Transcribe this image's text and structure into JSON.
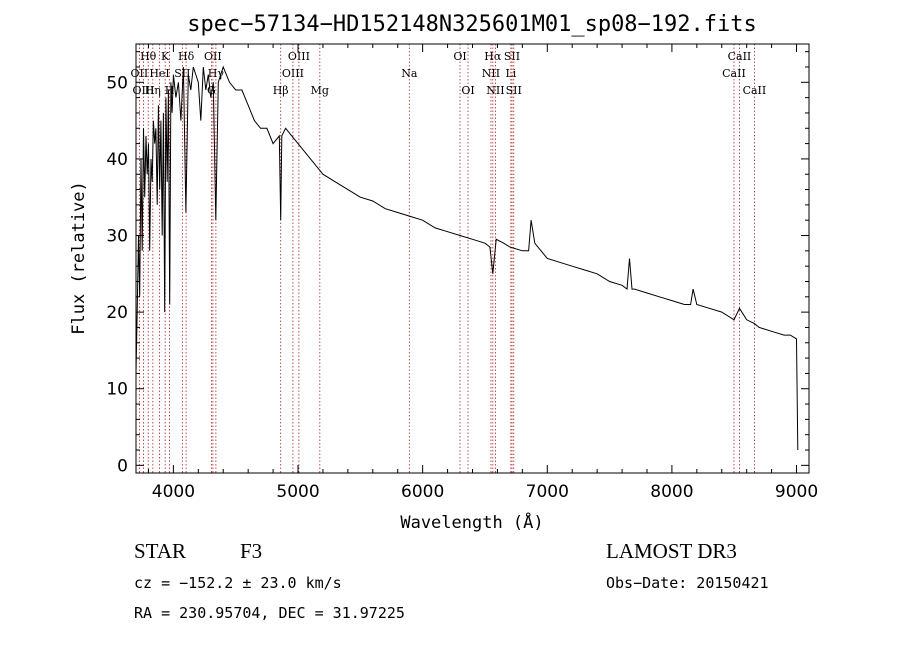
{
  "chart_data": {
    "type": "line",
    "title": "spec−57134−HD152148N325601M01_sp08−192.fits",
    "xlabel": "Wavelength (Å)",
    "ylabel": "Flux (relative)",
    "xlim": [
      3700,
      9100
    ],
    "ylim": [
      -1,
      55
    ],
    "xticks": [
      4000,
      5000,
      6000,
      7000,
      8000,
      9000
    ],
    "yticks": [
      0,
      10,
      20,
      30,
      40,
      50
    ],
    "series": [
      {
        "name": "spectrum",
        "x": [
          3700,
          3710,
          3720,
          3730,
          3740,
          3750,
          3760,
          3770,
          3780,
          3790,
          3800,
          3810,
          3820,
          3830,
          3840,
          3850,
          3860,
          3870,
          3880,
          3890,
          3900,
          3910,
          3920,
          3930,
          3940,
          3950,
          3960,
          3970,
          3980,
          3990,
          4000,
          4020,
          4040,
          4060,
          4080,
          4100,
          4120,
          4140,
          4160,
          4180,
          4200,
          4220,
          4240,
          4260,
          4280,
          4300,
          4320,
          4340,
          4360,
          4380,
          4400,
          4450,
          4500,
          4550,
          4600,
          4650,
          4700,
          4750,
          4800,
          4850,
          4861,
          4870,
          4900,
          4950,
          5000,
          5050,
          5100,
          5150,
          5200,
          5300,
          5400,
          5500,
          5600,
          5700,
          5800,
          5900,
          6000,
          6100,
          6200,
          6300,
          6400,
          6500,
          6540,
          6563,
          6590,
          6650,
          6700,
          6800,
          6850,
          6870,
          6900,
          7000,
          7100,
          7200,
          7300,
          7400,
          7500,
          7600,
          7640,
          7660,
          7680,
          7700,
          7800,
          7900,
          8000,
          8100,
          8150,
          8170,
          8200,
          8300,
          8400,
          8498,
          8542,
          8600,
          8662,
          8700,
          8800,
          8900,
          8950,
          9000,
          9010
        ],
        "y": [
          12,
          20,
          30,
          22,
          40,
          28,
          44,
          35,
          43,
          38,
          42,
          28,
          40,
          37,
          45,
          42,
          44,
          34,
          47,
          36,
          45,
          30,
          46,
          20,
          48,
          37,
          49,
          21,
          50,
          46,
          51,
          48,
          50,
          45,
          52,
          33,
          51,
          49,
          52,
          51,
          50,
          45,
          52,
          49,
          51,
          48,
          50,
          32,
          50,
          51,
          52,
          50,
          49,
          49,
          47,
          45,
          44,
          44,
          42,
          43,
          32,
          43,
          44,
          43,
          42,
          41,
          40,
          39,
          38,
          37,
          36,
          35,
          34.5,
          33.5,
          33,
          32.5,
          32,
          31,
          30.5,
          30,
          29.5,
          29,
          28.5,
          25,
          29.5,
          29,
          28.5,
          28,
          28,
          32,
          29,
          27,
          26.5,
          26,
          25.5,
          25,
          24,
          23.5,
          23,
          27,
          23,
          23,
          22.5,
          22,
          21.5,
          21,
          21,
          23,
          21,
          20.5,
          20,
          19,
          20.5,
          19,
          18.5,
          18,
          17.5,
          17,
          17,
          16.5,
          2
        ]
      }
    ],
    "annotations": [
      {
        "label": "Hθ",
        "wavelength": 3798,
        "row": 1
      },
      {
        "label": "OII",
        "wavelength": 3727,
        "row": 2
      },
      {
        "label": "OIII",
        "wavelength": 3760,
        "row": 3
      },
      {
        "label": "K",
        "wavelength": 3934,
        "row": 1
      },
      {
        "label": "HeI",
        "wavelength": 3889,
        "row": 2
      },
      {
        "label": "Hη",
        "wavelength": 3835,
        "row": 3
      },
      {
        "label": "Hδ",
        "wavelength": 4102,
        "row": 1
      },
      {
        "label": "SII",
        "wavelength": 4072,
        "row": 2
      },
      {
        "label": "H",
        "wavelength": 3969,
        "row": 3
      },
      {
        "label": "OII",
        "wavelength": 4317,
        "row": 1
      },
      {
        "label": "Hγ",
        "wavelength": 4341,
        "row": 2
      },
      {
        "label": "G",
        "wavelength": 4305,
        "row": 3
      },
      {
        "label": "Hβ",
        "wavelength": 4861,
        "row": 3
      },
      {
        "label": "OIII",
        "wavelength": 5007,
        "row": 1
      },
      {
        "label": "OIII",
        "wavelength": 4959,
        "row": 2
      },
      {
        "label": "Mg",
        "wavelength": 5175,
        "row": 3
      },
      {
        "label": "Na",
        "wavelength": 5893,
        "row": 2
      },
      {
        "label": "OI",
        "wavelength": 6300,
        "row": 1
      },
      {
        "label": "OI",
        "wavelength": 6364,
        "row": 3
      },
      {
        "label": "Hα",
        "wavelength": 6563,
        "row": 1
      },
      {
        "label": "NII",
        "wavelength": 6548,
        "row": 2
      },
      {
        "label": "NII",
        "wavelength": 6584,
        "row": 3
      },
      {
        "label": "SII",
        "wavelength": 6717,
        "row": 1
      },
      {
        "label": "Li",
        "wavelength": 6708,
        "row": 2
      },
      {
        "label": "SII",
        "wavelength": 6731,
        "row": 3
      },
      {
        "label": "CaII",
        "wavelength": 8542,
        "row": 1
      },
      {
        "label": "CaII",
        "wavelength": 8498,
        "row": 2
      },
      {
        "label": "CaII",
        "wavelength": 8662,
        "row": 3
      }
    ]
  },
  "info": {
    "object_class": "STAR",
    "subclass": "F3",
    "survey": "LAMOST DR3",
    "redshift": "cz = −152.2 ± 23.0 km/s",
    "obs_date": "Obs−Date: 20150421",
    "coords": "RA = 230.95704, DEC =  31.97225"
  },
  "colors": {
    "spectrum": "#000000",
    "line_marker": "#b22222"
  }
}
